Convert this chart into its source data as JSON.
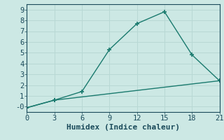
{
  "xlabel": "Humidex (Indice chaleur)",
  "ylabel": "",
  "background_color": "#cce8e4",
  "grid_color": "#b8d8d4",
  "line_color": "#1a7a6e",
  "line1_x": [
    0,
    3,
    6,
    9,
    12,
    15,
    18,
    21
  ],
  "line1_y": [
    -0.1,
    0.6,
    1.4,
    5.3,
    7.7,
    8.8,
    4.8,
    2.4
  ],
  "line2_x": [
    0,
    3,
    21
  ],
  "line2_y": [
    -0.1,
    0.6,
    2.4
  ],
  "xlim": [
    0,
    21
  ],
  "ylim": [
    -0.5,
    9.5
  ],
  "xticks": [
    0,
    3,
    6,
    9,
    12,
    15,
    18,
    21
  ],
  "yticks": [
    0,
    1,
    2,
    3,
    4,
    5,
    6,
    7,
    8,
    9
  ],
  "ytick_labels": [
    "-0",
    "1",
    "2",
    "3",
    "4",
    "5",
    "6",
    "7",
    "8",
    "9"
  ],
  "font_color": "#1a4a5a",
  "marker": "+",
  "marker_size": 5,
  "linewidth": 1.0,
  "font_size": 7.5,
  "xlabel_fontsize": 8,
  "xlabel_fontweight": "bold"
}
